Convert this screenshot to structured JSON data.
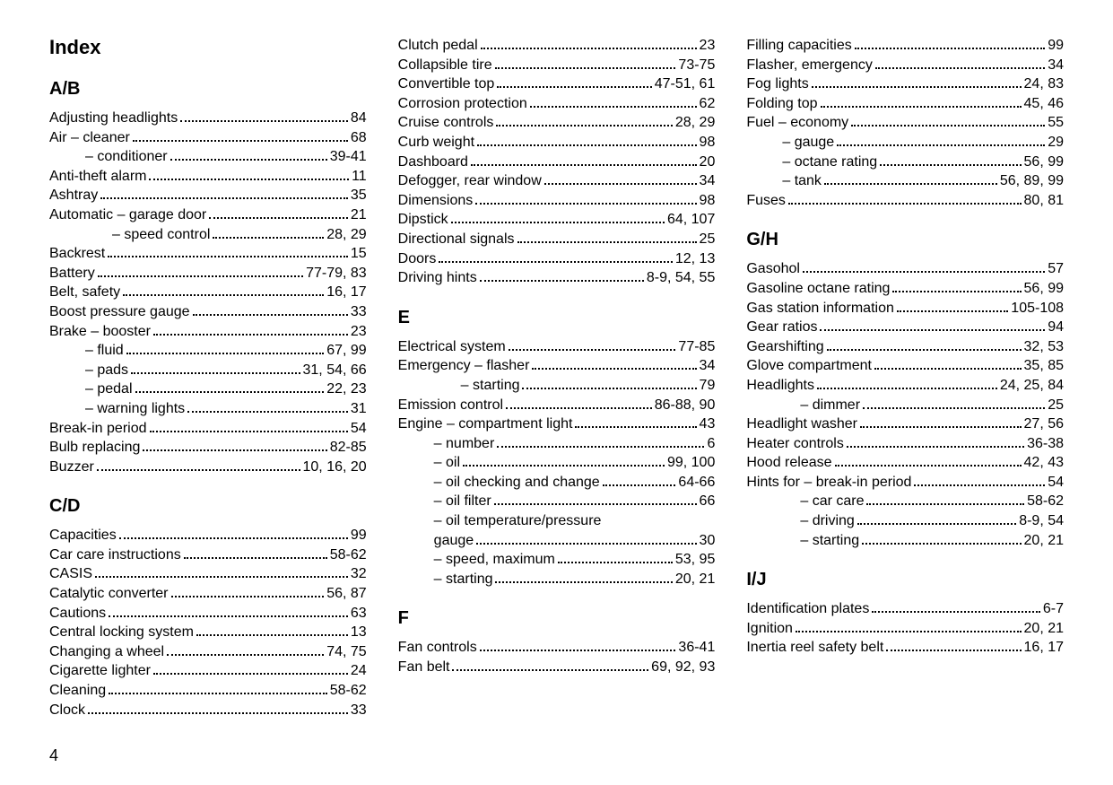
{
  "page_number": "4",
  "index_title": "Index",
  "columns": [
    {
      "blocks": [
        {
          "type": "section",
          "label": "A/B"
        },
        {
          "type": "entry",
          "label": "Adjusting headlights",
          "page": "84",
          "indent": 0
        },
        {
          "type": "entry",
          "label": "Air – cleaner",
          "page": "68",
          "indent": 0
        },
        {
          "type": "entry",
          "label": "– conditioner",
          "page": "39-41",
          "indent": 1
        },
        {
          "type": "entry",
          "label": "Anti-theft alarm",
          "page": "11",
          "indent": 0
        },
        {
          "type": "entry",
          "label": "Ashtray",
          "page": "35",
          "indent": 0
        },
        {
          "type": "entry",
          "label": "Automatic – garage door",
          "page": "21",
          "indent": 0
        },
        {
          "type": "entry",
          "label": "– speed control",
          "page": "28, 29",
          "indent": 2
        },
        {
          "type": "entry",
          "label": "Backrest",
          "page": "15",
          "indent": 0
        },
        {
          "type": "entry",
          "label": "Battery",
          "page": "77-79, 83",
          "indent": 0
        },
        {
          "type": "entry",
          "label": "Belt, safety",
          "page": "16, 17",
          "indent": 0
        },
        {
          "type": "entry",
          "label": "Boost pressure gauge",
          "page": "33",
          "indent": 0
        },
        {
          "type": "entry",
          "label": "Brake  –  booster",
          "page": "23",
          "indent": 0
        },
        {
          "type": "entry",
          "label": "–  fluid",
          "page": "67, 99",
          "indent": 1
        },
        {
          "type": "entry",
          "label": "–  pads",
          "page": "31, 54, 66",
          "indent": 1
        },
        {
          "type": "entry",
          "label": "–  pedal",
          "page": "22, 23",
          "indent": 1
        },
        {
          "type": "entry",
          "label": "–  warning lights",
          "page": "31",
          "indent": 1
        },
        {
          "type": "entry",
          "label": "Break-in period",
          "page": "54",
          "indent": 0
        },
        {
          "type": "entry",
          "label": "Bulb replacing",
          "page": "82-85",
          "indent": 0
        },
        {
          "type": "entry",
          "label": "Buzzer",
          "page": "10, 16, 20",
          "indent": 0
        },
        {
          "type": "section",
          "label": "C/D"
        },
        {
          "type": "entry",
          "label": "Capacities",
          "page": "99",
          "indent": 0
        },
        {
          "type": "entry",
          "label": "Car care instructions",
          "page": "58-62",
          "indent": 0
        },
        {
          "type": "entry",
          "label": "CASIS",
          "page": "32",
          "indent": 0
        },
        {
          "type": "entry",
          "label": "Catalytic converter",
          "page": "56, 87",
          "indent": 0
        },
        {
          "type": "entry",
          "label": "Cautions",
          "page": "63",
          "indent": 0
        },
        {
          "type": "entry",
          "label": "Central locking system",
          "page": "13",
          "indent": 0
        },
        {
          "type": "entry",
          "label": "Changing a wheel",
          "page": "74, 75",
          "indent": 0
        },
        {
          "type": "entry",
          "label": "Cigarette lighter",
          "page": "24",
          "indent": 0
        },
        {
          "type": "entry",
          "label": "Cleaning",
          "page": "58-62",
          "indent": 0
        },
        {
          "type": "entry",
          "label": "Clock",
          "page": "33",
          "indent": 0
        }
      ]
    },
    {
      "blocks": [
        {
          "type": "entry",
          "label": "Clutch pedal",
          "page": "23",
          "indent": 0
        },
        {
          "type": "entry",
          "label": "Collapsible tire",
          "page": "73-75",
          "indent": 0
        },
        {
          "type": "entry",
          "label": "Convertible top",
          "page": "47-51, 61",
          "indent": 0
        },
        {
          "type": "entry",
          "label": "Corrosion protection",
          "page": "62",
          "indent": 0
        },
        {
          "type": "entry",
          "label": "Cruise controls",
          "page": "28, 29",
          "indent": 0
        },
        {
          "type": "entry",
          "label": "Curb weight",
          "page": "98",
          "indent": 0
        },
        {
          "type": "entry",
          "label": "Dashboard",
          "page": "20",
          "indent": 0
        },
        {
          "type": "entry",
          "label": "Defogger, rear window",
          "page": "34",
          "indent": 0
        },
        {
          "type": "entry",
          "label": "Dimensions",
          "page": "98",
          "indent": 0
        },
        {
          "type": "entry",
          "label": "Dipstick",
          "page": "64, 107",
          "indent": 0
        },
        {
          "type": "entry",
          "label": "Directional signals",
          "page": "25",
          "indent": 0
        },
        {
          "type": "entry",
          "label": "Doors",
          "page": "12, 13",
          "indent": 0
        },
        {
          "type": "entry",
          "label": "Driving hints",
          "page": "8-9, 54, 55",
          "indent": 0
        },
        {
          "type": "section",
          "label": "E"
        },
        {
          "type": "entry",
          "label": "Electrical system",
          "page": "77-85",
          "indent": 0
        },
        {
          "type": "entry",
          "label": "Emergency – flasher",
          "page": "34",
          "indent": 0
        },
        {
          "type": "entry",
          "label": "– starting",
          "page": "79",
          "indent": 2
        },
        {
          "type": "entry",
          "label": "Emission control",
          "page": "86-88, 90",
          "indent": 0
        },
        {
          "type": "entry",
          "label": "Engine  –  compartment light",
          "page": "43",
          "indent": 0
        },
        {
          "type": "entry",
          "label": "–  number",
          "page": "6",
          "indent": 1
        },
        {
          "type": "entry",
          "label": "–  oil",
          "page": "99, 100",
          "indent": 1
        },
        {
          "type": "entry",
          "label": "–  oil checking and change",
          "page": "64-66",
          "indent": 1
        },
        {
          "type": "entry",
          "label": "–  oil filter",
          "page": "66",
          "indent": 1
        },
        {
          "type": "plain",
          "label": "–  oil temperature/pressure",
          "indent": 1
        },
        {
          "type": "entry",
          "label": "   gauge",
          "page": "30",
          "indent": 1
        },
        {
          "type": "entry",
          "label": "–  speed, maximum",
          "page": "53, 95",
          "indent": 1
        },
        {
          "type": "entry",
          "label": "–  starting",
          "page": "20, 21",
          "indent": 1
        },
        {
          "type": "section",
          "label": "F"
        },
        {
          "type": "entry",
          "label": "Fan controls",
          "page": "36-41",
          "indent": 0
        },
        {
          "type": "entry",
          "label": "Fan belt",
          "page": "69, 92, 93",
          "indent": 0
        }
      ]
    },
    {
      "blocks": [
        {
          "type": "entry",
          "label": "Filling capacities",
          "page": "99",
          "indent": 0
        },
        {
          "type": "entry",
          "label": "Flasher, emergency",
          "page": "34",
          "indent": 0
        },
        {
          "type": "entry",
          "label": "Fog lights",
          "page": "24, 83",
          "indent": 0
        },
        {
          "type": "entry",
          "label": "Folding top",
          "page": "45, 46",
          "indent": 0
        },
        {
          "type": "entry",
          "label": "Fuel  –  economy",
          "page": "55",
          "indent": 0
        },
        {
          "type": "entry",
          "label": "–  gauge",
          "page": "29",
          "indent": 1
        },
        {
          "type": "entry",
          "label": "–  octane rating",
          "page": "56, 99",
          "indent": 1
        },
        {
          "type": "entry",
          "label": "–  tank",
          "page": "56, 89, 99",
          "indent": 1
        },
        {
          "type": "entry",
          "label": "Fuses",
          "page": "80, 81",
          "indent": 0
        },
        {
          "type": "section",
          "label": "G/H"
        },
        {
          "type": "entry",
          "label": "Gasohol",
          "page": "57",
          "indent": 0
        },
        {
          "type": "entry",
          "label": "Gasoline octane rating",
          "page": "56, 99",
          "indent": 0
        },
        {
          "type": "entry",
          "label": "Gas station information",
          "page": "105-108",
          "indent": 0
        },
        {
          "type": "entry",
          "label": "Gear ratios",
          "page": "94",
          "indent": 0
        },
        {
          "type": "entry",
          "label": "Gearshifting",
          "page": "32, 53",
          "indent": 0
        },
        {
          "type": "entry",
          "label": "Glove compartment",
          "page": "35, 85",
          "indent": 0
        },
        {
          "type": "entry",
          "label": "Headlights",
          "page": "24, 25, 84",
          "indent": 0
        },
        {
          "type": "entry",
          "label": "–  dimmer",
          "page": "25",
          "indent": 3
        },
        {
          "type": "entry",
          "label": "Headlight washer",
          "page": "27, 56",
          "indent": 0
        },
        {
          "type": "entry",
          "label": "Heater controls",
          "page": "36-38",
          "indent": 0
        },
        {
          "type": "entry",
          "label": "Hood release",
          "page": "42, 43",
          "indent": 0
        },
        {
          "type": "entry",
          "label": "Hints for  –  break-in period",
          "page": "54",
          "indent": 0
        },
        {
          "type": "entry",
          "label": "–  car care",
          "page": "58-62",
          "indent": 3
        },
        {
          "type": "entry",
          "label": "–  driving",
          "page": "8-9, 54",
          "indent": 3
        },
        {
          "type": "entry",
          "label": "–  starting",
          "page": "20, 21",
          "indent": 3
        },
        {
          "type": "section",
          "label": "I/J"
        },
        {
          "type": "entry",
          "label": "Identification plates",
          "page": "6-7",
          "indent": 0
        },
        {
          "type": "entry",
          "label": "Ignition",
          "page": "20, 21",
          "indent": 0
        },
        {
          "type": "entry",
          "label": "Inertia reel safety belt",
          "page": "16, 17",
          "indent": 0
        }
      ]
    }
  ]
}
